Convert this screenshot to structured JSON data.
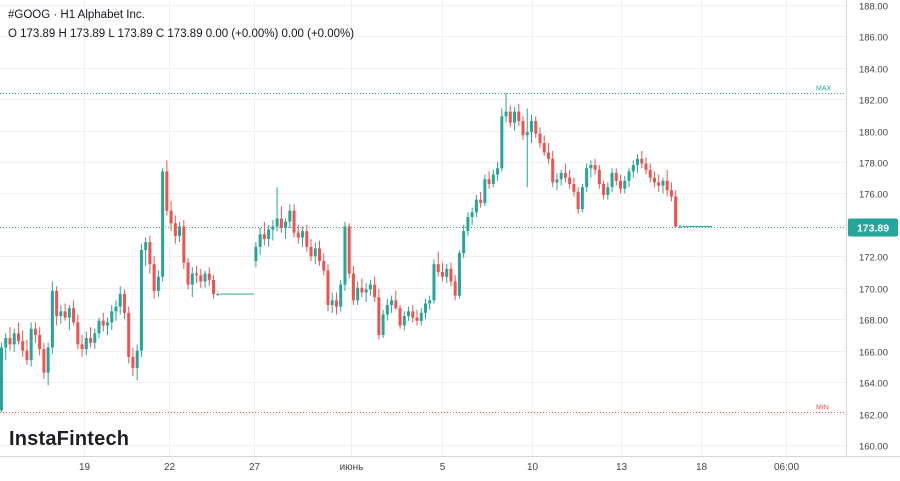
{
  "header": {
    "title": "#GOOG · H1 Alphabet Inc.",
    "ohlc": "O 173.89 H 173.89 L 173.89 C 173.89 0.00 (+0.00%) 0.00 (+0.00%)"
  },
  "brand": "InstaFintech",
  "colors": {
    "up": "#26a69a",
    "down": "#ef5350",
    "price_tag": "#26a69a",
    "max_line": "#26a69a",
    "min_line": "#ef5350",
    "axis_text": "#444444"
  },
  "chart_data": {
    "type": "candlestick",
    "ylim": [
      159.3,
      188.3
    ],
    "y_ticks": [
      "160.00",
      "162.00",
      "164.00",
      "166.00",
      "168.00",
      "170.00",
      "172.00",
      "174.00",
      "176.00",
      "178.00",
      "180.00",
      "182.00",
      "184.00",
      "186.00",
      "188.00"
    ],
    "x_ticks": [
      {
        "label": "19",
        "index": 19.5
      },
      {
        "label": "22",
        "index": 39.5
      },
      {
        "label": "27",
        "index": 59.5
      },
      {
        "label": "июнь",
        "index": 82.5
      },
      {
        "label": "5",
        "index": 104
      },
      {
        "label": "10",
        "index": 125
      },
      {
        "label": "13",
        "index": 146
      },
      {
        "label": "18",
        "index": 165
      },
      {
        "label": "06:00",
        "index": 185
      }
    ],
    "last_price": {
      "value": 173.89,
      "label": "173.89"
    },
    "max_line": {
      "value": 182.4,
      "label": "MAX"
    },
    "min_line": {
      "value": 162.1,
      "label": "MIN"
    },
    "candles": [
      [
        162.2,
        166.5,
        162.1,
        166.2
      ],
      [
        166.2,
        167.1,
        165.4,
        166.8
      ],
      [
        166.8,
        167.5,
        166.0,
        166.4
      ],
      [
        166.4,
        167.4,
        165.9,
        167.1
      ],
      [
        167.1,
        167.8,
        166.4,
        166.6
      ],
      [
        166.6,
        167.3,
        165.6,
        166.0
      ],
      [
        166.0,
        166.7,
        165.1,
        165.4
      ],
      [
        165.4,
        167.8,
        165.0,
        167.4
      ],
      [
        167.4,
        167.8,
        166.5,
        167.0
      ],
      [
        167.0,
        167.5,
        165.7,
        166.1
      ],
      [
        166.1,
        166.5,
        164.2,
        164.6
      ],
      [
        164.6,
        166.5,
        163.8,
        166.2
      ],
      [
        166.2,
        170.4,
        165.8,
        169.8
      ],
      [
        169.8,
        170.1,
        167.6,
        168.2
      ],
      [
        168.2,
        168.9,
        167.7,
        168.5
      ],
      [
        168.5,
        169.0,
        167.9,
        168.1
      ],
      [
        168.1,
        168.9,
        167.3,
        168.7
      ],
      [
        168.7,
        169.2,
        167.6,
        167.8
      ],
      [
        167.8,
        168.3,
        166.1,
        166.4
      ],
      [
        166.4,
        167.0,
        165.6,
        166.1
      ],
      [
        166.1,
        167.2,
        165.7,
        166.8
      ],
      [
        166.8,
        167.5,
        166.2,
        166.5
      ],
      [
        166.5,
        167.4,
        166.1,
        167.1
      ],
      [
        167.1,
        168.1,
        166.8,
        167.9
      ],
      [
        167.9,
        168.4,
        167.2,
        167.6
      ],
      [
        167.6,
        168.1,
        167.0,
        167.8
      ],
      [
        167.8,
        168.9,
        167.3,
        168.5
      ],
      [
        168.5,
        169.2,
        167.9,
        168.8
      ],
      [
        168.8,
        170.1,
        168.3,
        169.6
      ],
      [
        169.6,
        169.9,
        168.0,
        168.4
      ],
      [
        168.4,
        168.8,
        165.2,
        165.6
      ],
      [
        165.6,
        166.2,
        164.4,
        164.9
      ],
      [
        164.9,
        166.4,
        164.1,
        166.0
      ],
      [
        166.0,
        172.8,
        165.6,
        172.4
      ],
      [
        172.4,
        173.2,
        171.4,
        172.9
      ],
      [
        172.9,
        173.3,
        170.9,
        171.5
      ],
      [
        171.5,
        172.0,
        169.3,
        169.8
      ],
      [
        169.8,
        171.1,
        169.4,
        170.7
      ],
      [
        170.7,
        177.6,
        170.4,
        177.4
      ],
      [
        177.4,
        178.1,
        174.6,
        174.9
      ],
      [
        174.9,
        175.5,
        173.6,
        174.1
      ],
      [
        174.1,
        174.6,
        172.8,
        173.3
      ],
      [
        173.3,
        174.2,
        172.9,
        173.9
      ],
      [
        173.9,
        174.3,
        171.2,
        171.6
      ],
      [
        171.6,
        171.9,
        169.9,
        170.2
      ],
      [
        170.2,
        171.3,
        169.4,
        170.9
      ],
      [
        170.9,
        171.4,
        170.3,
        170.8
      ],
      [
        170.8,
        171.2,
        170.0,
        170.4
      ],
      [
        170.4,
        171.1,
        170.0,
        170.9
      ],
      [
        170.9,
        171.3,
        170.1,
        170.5
      ],
      [
        170.5,
        170.8,
        169.3,
        169.6
      ],
      [
        169.6,
        169.7,
        169.5,
        169.6
      ],
      [
        169.6,
        169.6,
        169.6,
        169.6
      ],
      [
        169.6,
        169.6,
        169.6,
        169.6
      ],
      [
        169.6,
        169.6,
        169.6,
        169.6
      ],
      [
        169.6,
        169.6,
        169.6,
        169.6
      ],
      [
        169.6,
        169.6,
        169.6,
        169.6
      ],
      [
        169.6,
        169.6,
        169.6,
        169.6
      ],
      [
        169.6,
        169.6,
        169.6,
        169.6
      ],
      [
        169.6,
        169.6,
        169.6,
        169.6
      ],
      [
        171.7,
        172.9,
        171.3,
        172.6
      ],
      [
        172.6,
        173.8,
        172.1,
        173.4
      ],
      [
        173.4,
        174.2,
        172.7,
        173.1
      ],
      [
        173.1,
        174.0,
        172.6,
        173.7
      ],
      [
        173.7,
        174.3,
        173.0,
        173.9
      ],
      [
        173.9,
        176.4,
        173.6,
        174.4
      ],
      [
        174.4,
        175.2,
        173.5,
        173.8
      ],
      [
        173.8,
        174.4,
        173.1,
        174.2
      ],
      [
        174.2,
        175.3,
        173.8,
        174.9
      ],
      [
        174.9,
        175.3,
        173.2,
        173.5
      ],
      [
        173.5,
        174.0,
        172.8,
        173.2
      ],
      [
        173.2,
        173.9,
        172.6,
        173.6
      ],
      [
        173.6,
        174.0,
        172.3,
        172.6
      ],
      [
        172.6,
        173.1,
        171.7,
        172.0
      ],
      [
        172.0,
        172.9,
        171.5,
        172.5
      ],
      [
        172.5,
        173.0,
        171.4,
        171.7
      ],
      [
        171.7,
        172.2,
        170.8,
        171.1
      ],
      [
        171.1,
        171.5,
        168.5,
        168.9
      ],
      [
        168.9,
        169.7,
        168.4,
        169.2
      ],
      [
        169.2,
        169.7,
        168.3,
        168.8
      ],
      [
        168.8,
        170.5,
        168.5,
        170.2
      ],
      [
        170.2,
        174.2,
        169.8,
        173.9
      ],
      [
        173.9,
        174.1,
        170.6,
        170.9
      ],
      [
        170.9,
        171.4,
        168.9,
        169.2
      ],
      [
        169.2,
        170.4,
        168.9,
        170.0
      ],
      [
        170.0,
        170.6,
        169.4,
        169.7
      ],
      [
        169.7,
        170.3,
        169.1,
        169.9
      ],
      [
        169.9,
        170.5,
        169.5,
        170.2
      ],
      [
        170.2,
        170.7,
        169.1,
        169.4
      ],
      [
        169.4,
        169.9,
        166.7,
        167.0
      ],
      [
        167.0,
        168.6,
        166.8,
        168.3
      ],
      [
        168.3,
        169.3,
        167.9,
        168.9
      ],
      [
        168.9,
        169.5,
        168.4,
        169.2
      ],
      [
        169.2,
        169.8,
        168.6,
        168.7
      ],
      [
        168.7,
        168.9,
        167.4,
        167.6
      ],
      [
        167.6,
        168.5,
        167.3,
        168.2
      ],
      [
        168.2,
        168.8,
        167.9,
        168.5
      ],
      [
        168.5,
        168.9,
        167.8,
        168.1
      ],
      [
        168.1,
        168.6,
        167.6,
        167.9
      ],
      [
        167.9,
        168.7,
        167.6,
        168.4
      ],
      [
        168.4,
        169.3,
        168.0,
        169.0
      ],
      [
        169.0,
        169.5,
        168.6,
        169.2
      ],
      [
        169.2,
        171.8,
        169.0,
        171.5
      ],
      [
        171.5,
        172.3,
        170.7,
        171.0
      ],
      [
        171.0,
        171.6,
        170.4,
        170.7
      ],
      [
        170.7,
        171.5,
        170.3,
        171.2
      ],
      [
        171.2,
        171.6,
        170.1,
        170.4
      ],
      [
        170.4,
        170.8,
        169.2,
        169.5
      ],
      [
        169.5,
        172.4,
        169.3,
        172.2
      ],
      [
        172.2,
        174.0,
        171.9,
        173.6
      ],
      [
        173.6,
        174.8,
        173.3,
        174.5
      ],
      [
        174.5,
        175.1,
        174.0,
        174.8
      ],
      [
        174.8,
        175.9,
        174.5,
        175.6
      ],
      [
        175.6,
        176.1,
        175.1,
        175.4
      ],
      [
        175.4,
        177.2,
        175.2,
        176.9
      ],
      [
        176.9,
        177.4,
        176.3,
        176.6
      ],
      [
        176.6,
        177.5,
        176.4,
        177.2
      ],
      [
        177.2,
        178.0,
        176.8,
        177.6
      ],
      [
        177.6,
        181.4,
        177.4,
        180.9
      ],
      [
        180.9,
        182.4,
        180.5,
        181.2
      ],
      [
        181.2,
        181.6,
        180.2,
        180.5
      ],
      [
        180.5,
        181.5,
        180.0,
        181.2
      ],
      [
        181.2,
        181.7,
        180.3,
        180.6
      ],
      [
        180.6,
        180.9,
        179.4,
        179.7
      ],
      [
        179.7,
        181.4,
        176.4,
        179.9
      ],
      [
        179.9,
        181.0,
        179.2,
        180.6
      ],
      [
        180.6,
        180.9,
        179.5,
        179.8
      ],
      [
        179.8,
        180.2,
        178.9,
        179.2
      ],
      [
        179.2,
        179.7,
        178.4,
        178.6
      ],
      [
        178.6,
        179.2,
        177.9,
        178.2
      ],
      [
        178.2,
        178.7,
        176.4,
        176.7
      ],
      [
        176.7,
        177.3,
        176.2,
        176.9
      ],
      [
        176.9,
        177.5,
        176.5,
        177.3
      ],
      [
        177.3,
        177.9,
        176.7,
        177.0
      ],
      [
        177.0,
        177.5,
        176.3,
        176.6
      ],
      [
        176.6,
        177.0,
        175.8,
        176.1
      ],
      [
        176.1,
        176.4,
        174.7,
        175.0
      ],
      [
        175.0,
        176.6,
        174.8,
        176.4
      ],
      [
        176.4,
        177.9,
        176.1,
        177.6
      ],
      [
        177.6,
        178.1,
        177.0,
        177.8
      ],
      [
        177.8,
        178.2,
        177.2,
        177.5
      ],
      [
        177.5,
        177.8,
        176.3,
        176.6
      ],
      [
        176.6,
        176.8,
        175.6,
        175.9
      ],
      [
        175.9,
        176.7,
        175.6,
        176.4
      ],
      [
        176.4,
        177.6,
        176.1,
        177.3
      ],
      [
        177.3,
        177.6,
        176.5,
        176.8
      ],
      [
        176.8,
        177.2,
        176.0,
        176.3
      ],
      [
        176.3,
        177.1,
        176.0,
        176.8
      ],
      [
        176.8,
        177.6,
        176.4,
        177.4
      ],
      [
        177.4,
        178.1,
        177.0,
        177.8
      ],
      [
        177.8,
        178.5,
        177.3,
        178.2
      ],
      [
        178.2,
        178.7,
        177.6,
        177.9
      ],
      [
        177.9,
        178.3,
        177.2,
        177.5
      ],
      [
        177.5,
        177.9,
        176.7,
        177.0
      ],
      [
        177.0,
        177.4,
        176.4,
        176.7
      ],
      [
        176.7,
        177.2,
        176.1,
        176.5
      ],
      [
        176.5,
        177.0,
        176.0,
        176.8
      ],
      [
        176.8,
        177.5,
        175.8,
        176.2
      ],
      [
        176.2,
        176.7,
        175.5,
        175.8
      ],
      [
        175.8,
        176.2,
        173.8,
        173.89
      ],
      [
        173.89,
        174.0,
        173.8,
        173.89
      ],
      [
        173.89,
        173.89,
        173.89,
        173.89
      ],
      [
        173.89,
        173.89,
        173.89,
        173.89
      ],
      [
        173.89,
        173.89,
        173.89,
        173.89
      ],
      [
        173.89,
        173.89,
        173.89,
        173.89
      ],
      [
        173.89,
        173.89,
        173.89,
        173.89
      ],
      [
        173.89,
        173.89,
        173.89,
        173.89
      ],
      [
        173.89,
        173.89,
        173.89,
        173.89
      ]
    ]
  }
}
